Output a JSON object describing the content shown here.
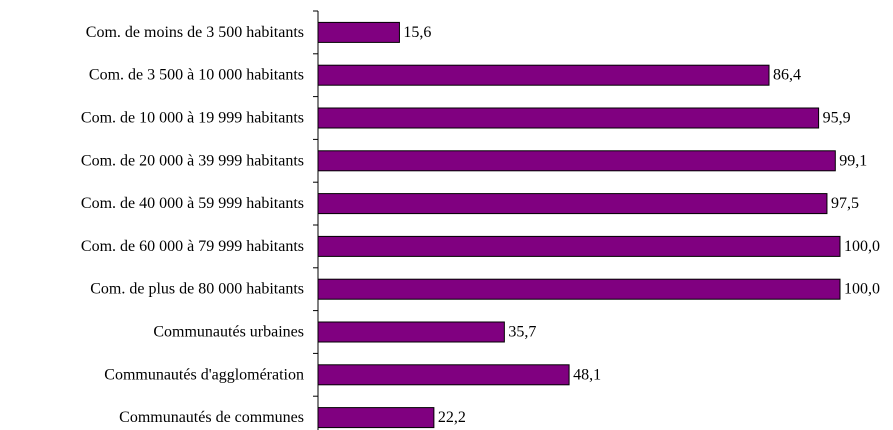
{
  "chart_data": {
    "type": "bar",
    "orientation": "horizontal",
    "title": "",
    "xlabel": "",
    "ylabel": "",
    "xlim": [
      0,
      100
    ],
    "grid": false,
    "legend": "none",
    "bar_color": "#800080",
    "categories": [
      "Com. de moins de 3 500 habitants",
      "Com. de 3 500 à 10 000 habitants",
      "Com. de 10 000 à 19 999 habitants",
      "Com. de 20 000 à 39 999 habitants",
      "Com. de 40 000 à 59 999 habitants",
      "Com. de 60 000 à 79 999 habitants",
      "Com. de plus de 80 000 habitants",
      "Communautés urbaines",
      "Communautés d'agglomération",
      "Communautés de communes"
    ],
    "values": [
      15.6,
      86.4,
      95.9,
      99.1,
      97.5,
      100.0,
      100.0,
      35.7,
      48.1,
      22.2
    ],
    "value_labels": [
      "15,6",
      "86,4",
      "95,9",
      "99,1",
      "97,5",
      "100,0",
      "100,0",
      "35,7",
      "48,1",
      "22,2"
    ]
  }
}
